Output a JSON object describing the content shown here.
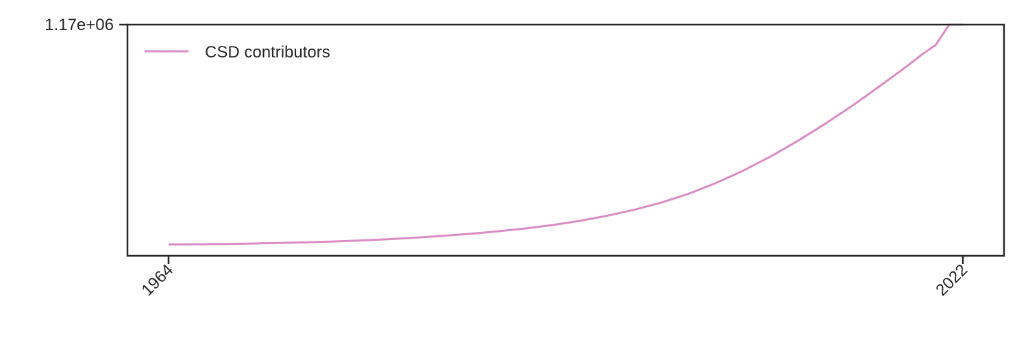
{
  "chart_data": {
    "type": "line",
    "title": "",
    "xlabel": "",
    "ylabel": "",
    "xlim": [
      1961,
      2025
    ],
    "ylim": [
      -50000,
      1170000
    ],
    "grid": false,
    "legend_position": "top-left",
    "x_ticks": [
      {
        "value": 1964,
        "label": "1964"
      },
      {
        "value": 2022,
        "label": "2022"
      }
    ],
    "y_ticks": [
      {
        "value": 1170000,
        "label": "1.17e+06"
      }
    ],
    "series": [
      {
        "name": "CSD contributors",
        "color": "#da8bc3",
        "x": [
          1964,
          1966,
          1968,
          1970,
          1972,
          1974,
          1976,
          1978,
          1980,
          1982,
          1984,
          1986,
          1988,
          1990,
          1992,
          1994,
          1996,
          1998,
          2000,
          2002,
          2004,
          2006,
          2008,
          2010,
          2012,
          2014,
          2016,
          2018,
          2019,
          2020,
          2021,
          2022
        ],
        "y": [
          10000,
          11000,
          12500,
          14500,
          17500,
          21000,
          25500,
          31000,
          37500,
          45500,
          55000,
          66000,
          79000,
          94000,
          112000,
          134000,
          161000,
          193000,
          231000,
          278000,
          335000,
          401000,
          476000,
          559000,
          649000,
          746000,
          849000,
          955000,
          1012000,
          1062000,
          1170000,
          1170000
        ]
      }
    ]
  }
}
